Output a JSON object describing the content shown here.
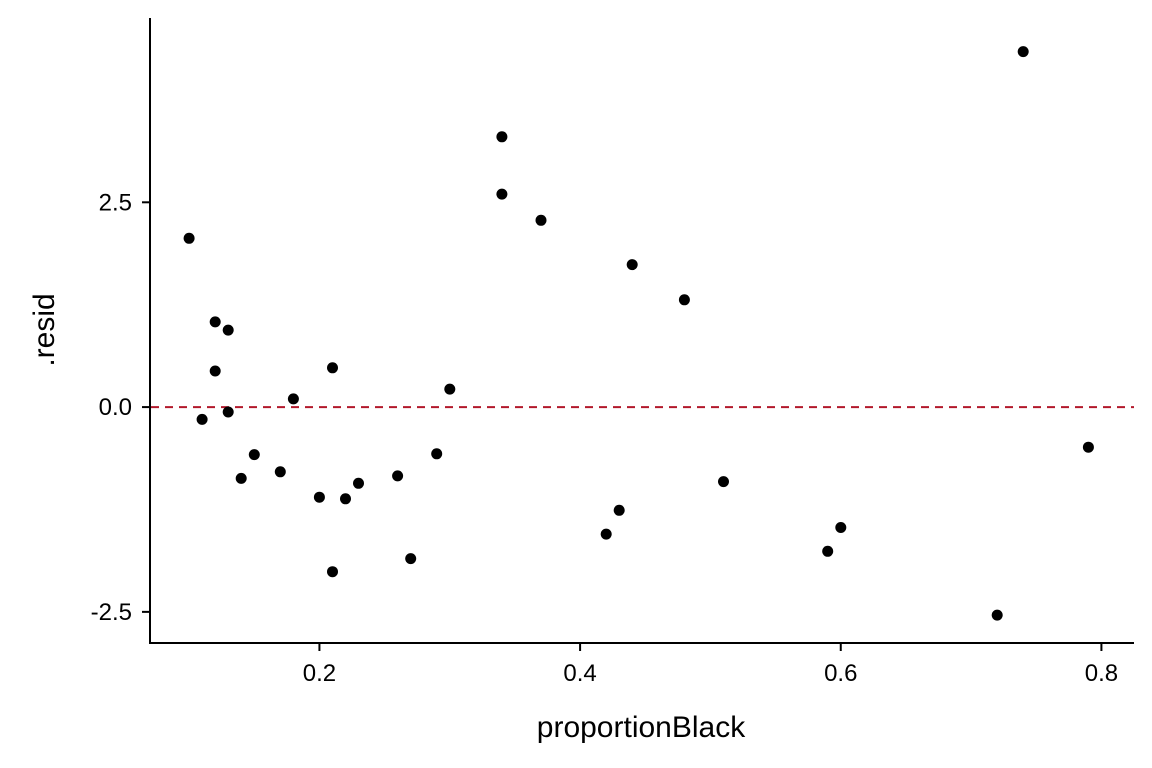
{
  "chart_data": {
    "type": "scatter",
    "xlabel": "proportionBlack",
    "ylabel": ".resid",
    "xlim": [
      0.07,
      0.825
    ],
    "ylim": [
      -2.88,
      4.75
    ],
    "x_ticks": [
      0.2,
      0.4,
      0.6,
      0.8
    ],
    "x_tick_labels": [
      "0.2",
      "0.4",
      "0.6",
      "0.8"
    ],
    "y_ticks": [
      -2.5,
      0.0,
      2.5
    ],
    "y_tick_labels": [
      "-2.5",
      "0.0",
      "2.5"
    ],
    "grid": false,
    "reference_line": {
      "y": 0,
      "style": "dashed",
      "color": "#b2182b"
    },
    "point_color": "#000000",
    "points": [
      {
        "x": 0.1,
        "y": 2.06
      },
      {
        "x": 0.11,
        "y": -0.15
      },
      {
        "x": 0.12,
        "y": 1.04
      },
      {
        "x": 0.12,
        "y": 0.44
      },
      {
        "x": 0.13,
        "y": 0.94
      },
      {
        "x": 0.13,
        "y": -0.06
      },
      {
        "x": 0.14,
        "y": -0.87
      },
      {
        "x": 0.15,
        "y": -0.58
      },
      {
        "x": 0.17,
        "y": -0.79
      },
      {
        "x": 0.18,
        "y": 0.1
      },
      {
        "x": 0.2,
        "y": -1.1
      },
      {
        "x": 0.21,
        "y": 0.48
      },
      {
        "x": 0.21,
        "y": -2.01
      },
      {
        "x": 0.22,
        "y": -1.12
      },
      {
        "x": 0.23,
        "y": -0.93
      },
      {
        "x": 0.26,
        "y": -0.84
      },
      {
        "x": 0.27,
        "y": -1.85
      },
      {
        "x": 0.29,
        "y": -0.57
      },
      {
        "x": 0.3,
        "y": 0.22
      },
      {
        "x": 0.34,
        "y": 3.3
      },
      {
        "x": 0.34,
        "y": 2.6
      },
      {
        "x": 0.37,
        "y": 2.28
      },
      {
        "x": 0.42,
        "y": -1.55
      },
      {
        "x": 0.43,
        "y": -1.26
      },
      {
        "x": 0.44,
        "y": 1.74
      },
      {
        "x": 0.48,
        "y": 1.31
      },
      {
        "x": 0.51,
        "y": -0.91
      },
      {
        "x": 0.59,
        "y": -1.76
      },
      {
        "x": 0.6,
        "y": -1.47
      },
      {
        "x": 0.72,
        "y": -2.54
      },
      {
        "x": 0.74,
        "y": 4.34
      },
      {
        "x": 0.79,
        "y": -0.49
      }
    ]
  }
}
